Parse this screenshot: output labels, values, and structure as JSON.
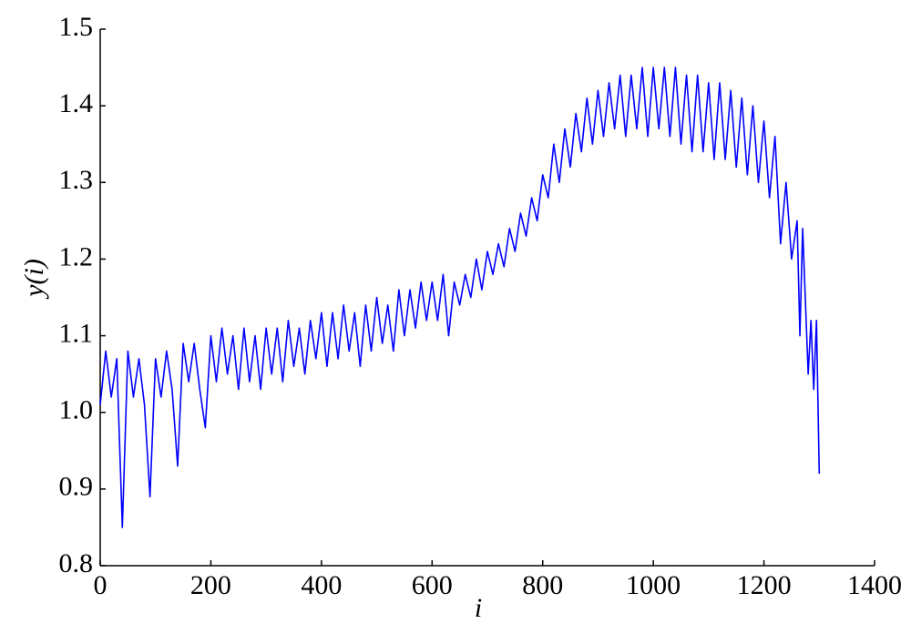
{
  "chart_data": {
    "type": "line",
    "xlabel": "i",
    "ylabel": "y(i)",
    "color": "#0000ff",
    "x": [
      0,
      10,
      20,
      30,
      40,
      50,
      60,
      70,
      80,
      90,
      100,
      110,
      120,
      130,
      140,
      150,
      160,
      170,
      180,
      190,
      200,
      210,
      220,
      230,
      240,
      250,
      260,
      270,
      280,
      290,
      300,
      310,
      320,
      330,
      340,
      350,
      360,
      370,
      380,
      390,
      400,
      410,
      420,
      430,
      440,
      450,
      460,
      470,
      480,
      490,
      500,
      510,
      520,
      530,
      540,
      550,
      560,
      570,
      580,
      590,
      600,
      610,
      620,
      630,
      640,
      650,
      660,
      670,
      680,
      690,
      700,
      710,
      720,
      730,
      740,
      750,
      760,
      770,
      780,
      790,
      800,
      810,
      820,
      830,
      840,
      850,
      860,
      870,
      880,
      890,
      900,
      910,
      920,
      930,
      940,
      950,
      960,
      970,
      980,
      990,
      1000,
      1010,
      1020,
      1030,
      1040,
      1050,
      1060,
      1070,
      1080,
      1090,
      1100,
      1110,
      1120,
      1130,
      1140,
      1150,
      1160,
      1170,
      1180,
      1190,
      1200,
      1210,
      1220,
      1230,
      1240,
      1250,
      1260,
      1265,
      1270,
      1280,
      1285,
      1290,
      1295,
      1300
    ],
    "values": [
      1.01,
      1.08,
      1.02,
      1.07,
      0.85,
      1.08,
      1.02,
      1.07,
      1.01,
      0.89,
      1.07,
      1.02,
      1.08,
      1.03,
      0.93,
      1.09,
      1.04,
      1.09,
      1.03,
      0.98,
      1.1,
      1.04,
      1.11,
      1.05,
      1.1,
      1.03,
      1.11,
      1.04,
      1.1,
      1.03,
      1.11,
      1.05,
      1.11,
      1.04,
      1.12,
      1.06,
      1.11,
      1.05,
      1.12,
      1.07,
      1.13,
      1.06,
      1.13,
      1.07,
      1.14,
      1.08,
      1.13,
      1.06,
      1.14,
      1.08,
      1.15,
      1.09,
      1.14,
      1.08,
      1.16,
      1.1,
      1.16,
      1.11,
      1.17,
      1.12,
      1.17,
      1.12,
      1.18,
      1.1,
      1.17,
      1.14,
      1.18,
      1.15,
      1.2,
      1.16,
      1.21,
      1.18,
      1.22,
      1.19,
      1.24,
      1.21,
      1.26,
      1.23,
      1.28,
      1.25,
      1.31,
      1.28,
      1.35,
      1.3,
      1.37,
      1.32,
      1.39,
      1.34,
      1.41,
      1.35,
      1.42,
      1.36,
      1.43,
      1.37,
      1.44,
      1.36,
      1.44,
      1.37,
      1.45,
      1.36,
      1.45,
      1.37,
      1.45,
      1.36,
      1.45,
      1.35,
      1.44,
      1.34,
      1.44,
      1.34,
      1.43,
      1.33,
      1.43,
      1.33,
      1.42,
      1.32,
      1.41,
      1.31,
      1.4,
      1.3,
      1.38,
      1.28,
      1.36,
      1.22,
      1.3,
      1.2,
      1.25,
      1.1,
      1.24,
      1.05,
      1.12,
      1.03,
      1.12,
      0.92
    ],
    "xlim": [
      0,
      1400
    ],
    "xticks": [
      0,
      200,
      400,
      600,
      800,
      1000,
      1200,
      1400
    ],
    "ylim": [
      0.8,
      1.5
    ],
    "yticks": [
      0.8,
      0.9,
      {
        "value": 1,
        "label": "1.0"
      },
      1.1,
      1.2,
      1.3,
      1.4,
      1.5
    ]
  }
}
